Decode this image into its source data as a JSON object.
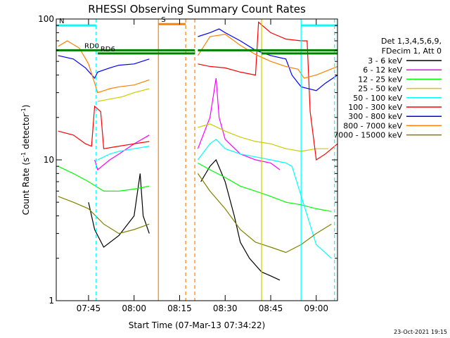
{
  "chart_data": {
    "type": "line",
    "title": "RHESSI Observing Summary Count Rates",
    "xlabel": "Start Time (07-Mar-13 07:34:22)",
    "ylabel_main": "Count Rate (s",
    "ylabel_sup1": "-1",
    "ylabel_mid": " detector",
    "ylabel_sup2": "-1",
    "ylabel_end": ")",
    "yscale": "log",
    "ylim": [
      1,
      100
    ],
    "xlim": [
      "07:34:22",
      "09:07:00"
    ],
    "x_ticks": [
      "07:45",
      "08:00",
      "08:15",
      "08:30",
      "08:45",
      "09:00"
    ],
    "y_ticks": [
      "1",
      "10",
      "100"
    ],
    "legend_header": [
      "Det 1,3,4,5,6,9,",
      "FDecim 1, Att 0"
    ],
    "series": [
      {
        "name": "3 - 6 keV",
        "color": "#000000",
        "points": [
          [
            "07:45",
            5
          ],
          [
            "07:47",
            3.2
          ],
          [
            "07:50",
            2.4
          ],
          [
            "07:55",
            2.9
          ],
          [
            "08:00",
            4
          ],
          [
            "08:02",
            8
          ],
          [
            "08:03",
            4
          ],
          [
            "08:05",
            3
          ],
          [
            "08:22",
            7
          ],
          [
            "08:25",
            9
          ],
          [
            "08:27",
            10
          ],
          [
            "08:30",
            7
          ],
          [
            "08:33",
            4
          ],
          [
            "08:35",
            2.6
          ],
          [
            "08:38",
            2
          ],
          [
            "08:42",
            1.6
          ],
          [
            "08:45",
            1.5
          ],
          [
            "08:48",
            1.4
          ]
        ]
      },
      {
        "name": "6 - 12 keV",
        "color": "#ff00ff",
        "points": [
          [
            "07:47",
            10
          ],
          [
            "07:48",
            8.5
          ],
          [
            "07:52",
            10
          ],
          [
            "07:55",
            11
          ],
          [
            "08:00",
            13
          ],
          [
            "08:05",
            15
          ],
          [
            "08:21",
            12
          ],
          [
            "08:25",
            20
          ],
          [
            "08:27",
            38
          ],
          [
            "08:28",
            20
          ],
          [
            "08:30",
            14
          ],
          [
            "08:35",
            11
          ],
          [
            "08:40",
            10
          ],
          [
            "08:45",
            9.5
          ],
          [
            "08:48",
            8.5
          ]
        ]
      },
      {
        "name": "12 - 25 keV",
        "color": "#00ff00",
        "points": [
          [
            "07:35",
            9
          ],
          [
            "07:40",
            8
          ],
          [
            "07:45",
            7
          ],
          [
            "07:50",
            6
          ],
          [
            "07:55",
            6
          ],
          [
            "08:00",
            6.2
          ],
          [
            "08:05",
            6.5
          ],
          [
            "08:21",
            9.5
          ],
          [
            "08:25",
            8.5
          ],
          [
            "08:30",
            7.5
          ],
          [
            "08:35",
            6.5
          ],
          [
            "08:40",
            6
          ],
          [
            "08:45",
            5.5
          ],
          [
            "08:50",
            5
          ],
          [
            "08:55",
            4.8
          ],
          [
            "09:00",
            4.5
          ],
          [
            "09:05",
            4.3
          ]
        ]
      },
      {
        "name": "25 - 50 keV",
        "color": "#cccc00",
        "points": [
          [
            "07:48",
            26
          ],
          [
            "07:52",
            27
          ],
          [
            "07:56",
            28
          ],
          [
            "08:00",
            30
          ],
          [
            "08:05",
            32
          ],
          [
            "08:21",
            17
          ],
          [
            "08:25",
            18
          ],
          [
            "08:30",
            16
          ],
          [
            "08:35",
            14.5
          ],
          [
            "08:40",
            13.5
          ],
          [
            "08:45",
            13
          ],
          [
            "08:50",
            12
          ],
          [
            "08:55",
            11.5
          ],
          [
            "09:00",
            12
          ],
          [
            "09:04",
            12
          ]
        ]
      },
      {
        "name": "50 - 100 keV",
        "color": "#00ffff",
        "points": [
          [
            "07:48",
            10
          ],
          [
            "07:52",
            11
          ],
          [
            "07:55",
            11.5
          ],
          [
            "08:00",
            12
          ],
          [
            "08:05",
            12.5
          ],
          [
            "08:21",
            10
          ],
          [
            "08:25",
            13
          ],
          [
            "08:27",
            14
          ],
          [
            "08:30",
            12
          ],
          [
            "08:35",
            11
          ],
          [
            "08:40",
            10.5
          ],
          [
            "08:45",
            10
          ],
          [
            "08:50",
            9.5
          ],
          [
            "08:52",
            9
          ],
          [
            "09:00",
            2.5
          ],
          [
            "09:05",
            2
          ]
        ]
      },
      {
        "name": "100 - 300 keV",
        "color": "#ff0000",
        "points": [
          [
            "07:35",
            16
          ],
          [
            "07:40",
            15
          ],
          [
            "07:44",
            13
          ],
          [
            "07:46",
            12.5
          ],
          [
            "07:47",
            24
          ],
          [
            "07:49",
            22
          ],
          [
            "07:50",
            12
          ],
          [
            "07:55",
            12.5
          ],
          [
            "08:00",
            13
          ],
          [
            "08:05",
            13.5
          ],
          [
            "08:21",
            48
          ],
          [
            "08:25",
            46
          ],
          [
            "08:30",
            45
          ],
          [
            "08:35",
            42
          ],
          [
            "08:40",
            40
          ],
          [
            "08:41",
            95
          ],
          [
            "08:45",
            80
          ],
          [
            "08:50",
            72
          ],
          [
            "08:55",
            70
          ],
          [
            "08:57",
            70
          ],
          [
            "08:58",
            22
          ],
          [
            "09:00",
            10
          ],
          [
            "09:03",
            11
          ],
          [
            "09:07",
            13
          ]
        ]
      },
      {
        "name": "300 - 800 keV",
        "color": "#0000ff",
        "points": [
          [
            "07:35",
            55
          ],
          [
            "07:40",
            52
          ],
          [
            "07:44",
            45
          ],
          [
            "07:47",
            38
          ],
          [
            "07:48",
            42
          ],
          [
            "07:52",
            45
          ],
          [
            "07:55",
            47
          ],
          [
            "08:00",
            48
          ],
          [
            "08:05",
            52
          ],
          [
            "08:21",
            75
          ],
          [
            "08:25",
            80
          ],
          [
            "08:28",
            85
          ],
          [
            "08:30",
            80
          ],
          [
            "08:35",
            70
          ],
          [
            "08:40",
            60
          ],
          [
            "08:45",
            55
          ],
          [
            "08:50",
            52
          ],
          [
            "08:52",
            40
          ],
          [
            "08:55",
            33
          ],
          [
            "09:00",
            31
          ],
          [
            "09:03",
            35
          ],
          [
            "09:07",
            40
          ]
        ]
      },
      {
        "name": "800 - 7000 keV",
        "color": "#ff8000",
        "points": [
          [
            "07:35",
            64
          ],
          [
            "07:38",
            70
          ],
          [
            "07:42",
            62
          ],
          [
            "07:45",
            48
          ],
          [
            "07:48",
            30
          ],
          [
            "07:52",
            32
          ],
          [
            "07:55",
            33
          ],
          [
            "08:00",
            34
          ],
          [
            "08:05",
            37
          ],
          [
            "08:21",
            55
          ],
          [
            "08:25",
            75
          ],
          [
            "08:30",
            78
          ],
          [
            "08:35",
            65
          ],
          [
            "08:40",
            56
          ],
          [
            "08:45",
            50
          ],
          [
            "08:50",
            46
          ],
          [
            "08:54",
            44
          ],
          [
            "08:56",
            38
          ],
          [
            "09:00",
            40
          ],
          [
            "09:07",
            46
          ]
        ]
      },
      {
        "name": "7000 - 15000 keV",
        "color": "#808000",
        "points": [
          [
            "07:35",
            5.5
          ],
          [
            "07:40",
            5
          ],
          [
            "07:45",
            4.5
          ],
          [
            "07:50",
            3.5
          ],
          [
            "07:55",
            3
          ],
          [
            "08:00",
            3.2
          ],
          [
            "08:05",
            3.5
          ],
          [
            "08:21",
            8
          ],
          [
            "08:25",
            6
          ],
          [
            "08:30",
            4.5
          ],
          [
            "08:35",
            3.2
          ],
          [
            "08:40",
            2.6
          ],
          [
            "08:45",
            2.4
          ],
          [
            "08:50",
            2.2
          ],
          [
            "08:55",
            2.5
          ],
          [
            "09:00",
            3
          ],
          [
            "09:05",
            3.5
          ]
        ]
      }
    ],
    "state_bars": [
      {
        "label": "N",
        "color": "#00ffff",
        "y": 90,
        "segments": [
          [
            "07:34:22",
            "07:47:30"
          ],
          [
            "08:55",
            "09:07:00"
          ]
        ]
      },
      {
        "label": "S",
        "color": "#ff8000",
        "y": 92,
        "segments": [
          [
            "08:08",
            "08:17"
          ]
        ]
      },
      {
        "label": "RD0",
        "color": "#008000",
        "y": 60,
        "segments": [
          [
            "07:34:22",
            "08:20"
          ],
          [
            "08:21",
            "09:07:00"
          ]
        ]
      },
      {
        "label": "RD6",
        "color": "#008000",
        "y": 57,
        "segments": [
          [
            "07:48",
            "08:20"
          ],
          [
            "08:42",
            "09:07:00"
          ]
        ]
      }
    ],
    "markers": [
      {
        "x": "07:47:30",
        "color": "#00ffff",
        "style": "dashed"
      },
      {
        "x": "08:08",
        "color": "#ff8000",
        "style": "solid"
      },
      {
        "x": "08:17",
        "color": "#ff8000",
        "style": "dashed"
      },
      {
        "x": "08:20",
        "color": "#ff8000",
        "style": "dashed"
      },
      {
        "x": "08:42",
        "color": "#cccc00",
        "style": "solid"
      },
      {
        "x": "08:55",
        "color": "#00ffff",
        "style": "solid"
      },
      {
        "x": "09:06",
        "color": "#00ffff",
        "style": "dashed"
      }
    ],
    "data_gap": [
      "08:05",
      "08:21"
    ],
    "timestamp": "23-Oct-2021 19:15"
  }
}
